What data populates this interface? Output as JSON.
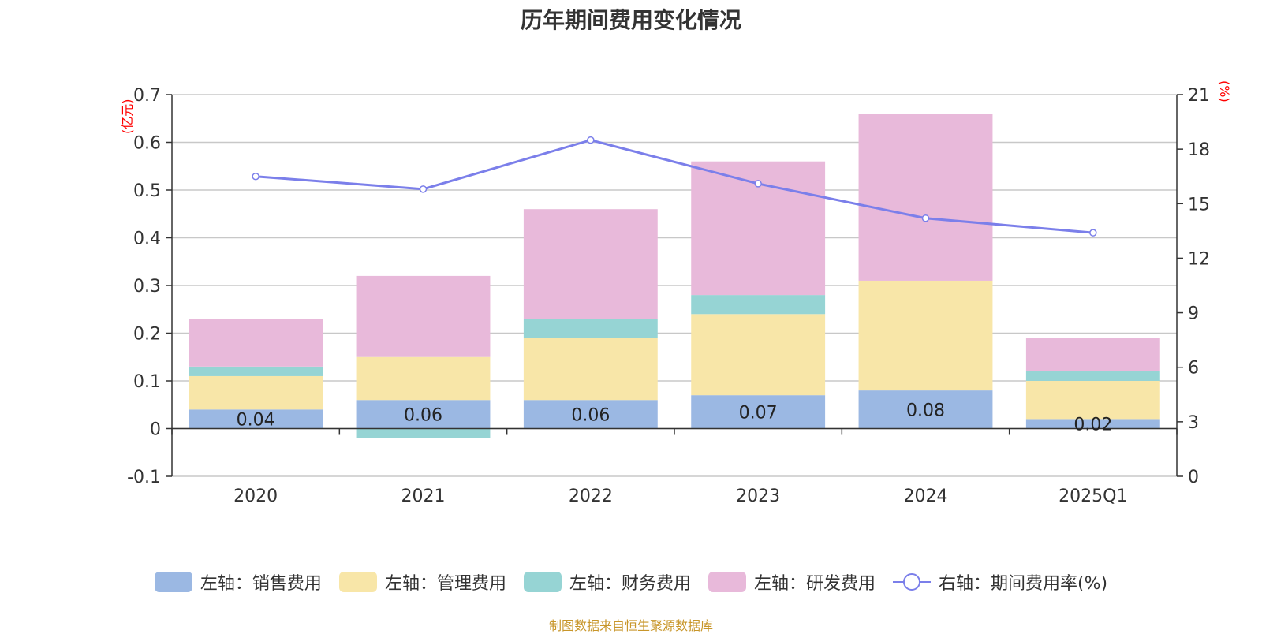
{
  "chart_data": {
    "type": "bar",
    "title": "历年期间费用变化情况",
    "left_unit": "(亿元)",
    "right_unit": "(%)",
    "categories": [
      "2020",
      "2021",
      "2022",
      "2023",
      "2024",
      "2025Q1"
    ],
    "left_axis": {
      "ylim": [
        -0.1,
        0.7
      ],
      "ticks": [
        "-0.1",
        "0",
        "0.1",
        "0.2",
        "0.3",
        "0.4",
        "0.5",
        "0.6",
        "0.7"
      ]
    },
    "right_axis": {
      "ylim": [
        0,
        21
      ],
      "ticks": [
        "0",
        "3",
        "6",
        "9",
        "12",
        "15",
        "18",
        "21"
      ]
    },
    "grid": true,
    "stacked": true,
    "legend_position": "bottom",
    "series": [
      {
        "name": "左轴：销售费用",
        "axis": "left",
        "type": "bar",
        "color": "#9bb8e3",
        "values": [
          0.04,
          0.06,
          0.06,
          0.07,
          0.08,
          0.02
        ],
        "labels": [
          "0.04",
          "0.06",
          "0.06",
          "0.07",
          "0.08",
          "0.02"
        ]
      },
      {
        "name": "左轴：管理费用",
        "axis": "left",
        "type": "bar",
        "color": "#f8e6a8",
        "values": [
          0.07,
          0.09,
          0.13,
          0.17,
          0.23,
          0.08
        ]
      },
      {
        "name": "左轴：财务费用",
        "axis": "left",
        "type": "bar",
        "color": "#96d4d4",
        "values": [
          0.02,
          -0.02,
          0.04,
          0.04,
          0.0,
          0.02
        ]
      },
      {
        "name": "左轴：研发费用",
        "axis": "left",
        "type": "bar",
        "color": "#e8b9da",
        "values": [
          0.1,
          0.17,
          0.23,
          0.28,
          0.35,
          0.07
        ]
      },
      {
        "name": "右轴：期间费用率(%)",
        "axis": "right",
        "type": "line",
        "color": "#7b7fea",
        "values": [
          16.5,
          15.8,
          18.5,
          16.1,
          14.2,
          13.4
        ]
      }
    ]
  },
  "source": "制图数据来自恒生聚源数据库"
}
